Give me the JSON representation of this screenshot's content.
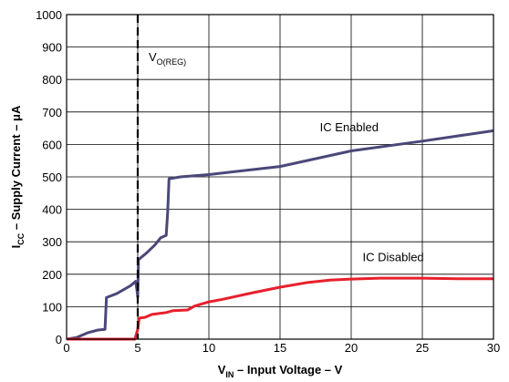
{
  "chart_data": {
    "type": "line",
    "xlabel": {
      "main": "V",
      "sub": "IN",
      "rest": " – Input Voltage – V"
    },
    "ylabel": {
      "main": "I",
      "sub": "CC",
      "rest": " – Supply Current – μA"
    },
    "xlim": [
      0,
      30
    ],
    "ylim": [
      0,
      1000
    ],
    "xticks": [
      0,
      5,
      10,
      15,
      20,
      25,
      30
    ],
    "yticks": [
      0,
      100,
      200,
      300,
      400,
      500,
      600,
      700,
      800,
      900,
      1000
    ],
    "grid": true,
    "vline": {
      "x": 5,
      "label_main": "V",
      "label_sub": "O(REG)"
    },
    "series": [
      {
        "name": "IC Enabled",
        "color": "#4a4878",
        "points": [
          [
            0,
            0
          ],
          [
            0.7,
            5
          ],
          [
            1.5,
            20
          ],
          [
            2.2,
            28
          ],
          [
            2.7,
            30
          ],
          [
            2.8,
            128
          ],
          [
            3.5,
            140
          ],
          [
            4.5,
            165
          ],
          [
            4.85,
            178
          ],
          [
            4.95,
            150
          ],
          [
            5.0,
            130
          ],
          [
            5.05,
            245
          ],
          [
            5.6,
            265
          ],
          [
            6.2,
            290
          ],
          [
            6.6,
            312
          ],
          [
            7.0,
            320
          ],
          [
            7.1,
            390
          ],
          [
            7.2,
            494
          ],
          [
            8,
            500
          ],
          [
            10,
            507
          ],
          [
            15,
            532
          ],
          [
            20,
            580
          ],
          [
            25,
            610
          ],
          [
            30,
            642
          ]
        ]
      },
      {
        "name": "IC Disabled",
        "color": "#e8202c",
        "points": [
          [
            0,
            0
          ],
          [
            4.8,
            0
          ],
          [
            5.0,
            30
          ],
          [
            5.1,
            65
          ],
          [
            5.5,
            67
          ],
          [
            6,
            76
          ],
          [
            7,
            82
          ],
          [
            7.5,
            88
          ],
          [
            8.5,
            90
          ],
          [
            9,
            102
          ],
          [
            10,
            115
          ],
          [
            11,
            123
          ],
          [
            13,
            142
          ],
          [
            15,
            160
          ],
          [
            17,
            175
          ],
          [
            18.5,
            182
          ],
          [
            20,
            185
          ],
          [
            22,
            188
          ],
          [
            25,
            188
          ],
          [
            27.5,
            186
          ],
          [
            30,
            186
          ]
        ]
      }
    ]
  }
}
